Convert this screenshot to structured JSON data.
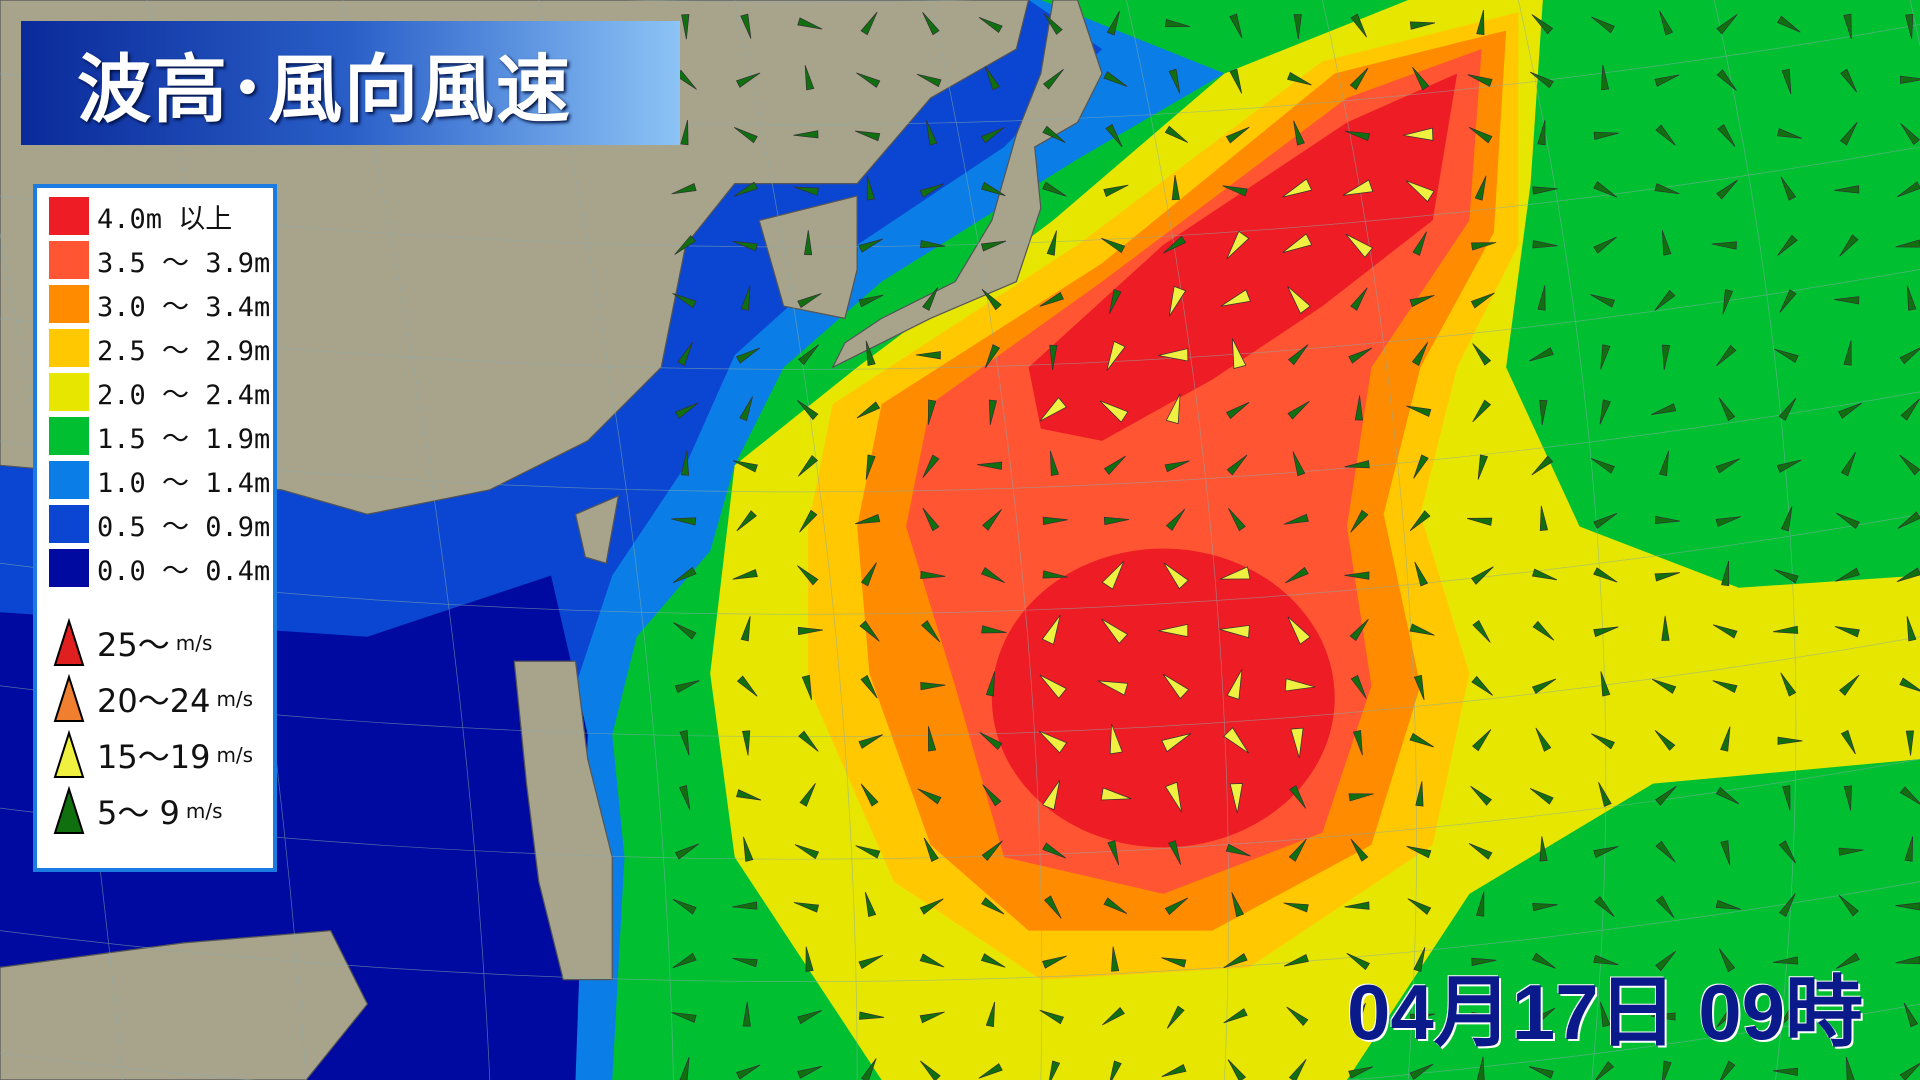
{
  "title": "波高･風向風速",
  "date_label": "04月17日 09時",
  "wave_legend": [
    {
      "label": "4.0m 以上",
      "color": "#ee1c24"
    },
    {
      "label": "3.5 ～ 3.9m",
      "color": "#ff5533"
    },
    {
      "label": "3.0 ～ 3.4m",
      "color": "#ff8c00"
    },
    {
      "label": "2.5 ～ 2.9m",
      "color": "#ffc800"
    },
    {
      "label": "2.0 ～ 2.4m",
      "color": "#e6e600"
    },
    {
      "label": "1.5 ～ 1.9m",
      "color": "#00c032"
    },
    {
      "label": "1.0 ～ 1.4m",
      "color": "#0a7ee6"
    },
    {
      "label": "0.5 ～ 0.9m",
      "color": "#0a46d2"
    },
    {
      "label": "0.0 ～ 0.4m",
      "color": "#000aa0"
    }
  ],
  "wind_legend": [
    {
      "label": "25～",
      "unit": "m/s",
      "color": "#e02020"
    },
    {
      "label": "20～24",
      "unit": "m/s",
      "color": "#f08030"
    },
    {
      "label": "15～19",
      "unit": "m/s",
      "color": "#f0f040"
    },
    {
      "label": "5～ 9",
      "unit": "m/s",
      "color": "#107010"
    }
  ],
  "colors": {
    "land": "#a8a48c",
    "title_bg": "#0a2a9a",
    "legend_border": "#1a7be0"
  }
}
